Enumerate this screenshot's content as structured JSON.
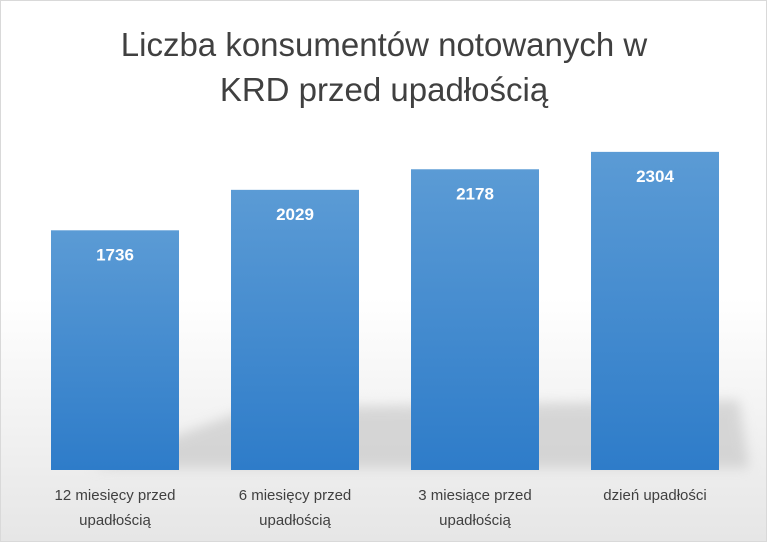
{
  "chart_data": {
    "type": "bar",
    "title": [
      "Liczba konsumentów notowanych w",
      "KRD przed upadłością"
    ],
    "categories": [
      [
        "12 miesięcy przed",
        "upadłością"
      ],
      [
        "6 miesięcy przed",
        "upadłością"
      ],
      [
        "3 miesiące przed",
        "upadłością"
      ],
      [
        "dzień upadłości"
      ]
    ],
    "values": [
      1736,
      2029,
      2178,
      2304
    ],
    "data_labels": [
      "1736",
      "2029",
      "2178",
      "2304"
    ],
    "ylim": [
      0,
      2600
    ],
    "grid": false,
    "legend": "none",
    "bar_color_top": "#5b9bd5",
    "bar_color_bottom": "#2e7cc9"
  }
}
